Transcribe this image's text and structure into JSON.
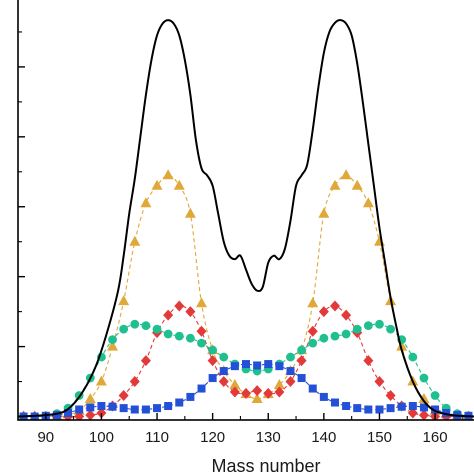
{
  "chart_data": {
    "type": "line",
    "title": "",
    "xlabel": "Mass number",
    "ylabel": "",
    "xlim": [
      85,
      167
    ],
    "ylim": [
      -0.05,
      6.1
    ],
    "x_ticks": [
      90,
      100,
      110,
      120,
      130,
      140,
      150,
      160
    ],
    "x_tick_labels": [
      "90",
      "100",
      "110",
      "120",
      "130",
      "140",
      "150",
      "160"
    ],
    "y_ticks": [
      0,
      1,
      2,
      3,
      4,
      5
    ],
    "grid": false,
    "legend": "none",
    "series": [
      {
        "style": "solid-line",
        "color": "#000000",
        "x": [
          85,
          90,
          93,
          95,
          97,
          99,
          101,
          103,
          104,
          105,
          106,
          107,
          108,
          109,
          110,
          111,
          112,
          113,
          114,
          115,
          116,
          117,
          118,
          119,
          120,
          121,
          122,
          123,
          124,
          125,
          126,
          127,
          128,
          129,
          130,
          131,
          132,
          133,
          134,
          135,
          136,
          137,
          138,
          139,
          140,
          141,
          142,
          143,
          144,
          145,
          146,
          147,
          148,
          149,
          150,
          151,
          152,
          153,
          154,
          156,
          158,
          160,
          163,
          167
        ],
        "y": [
          0.0,
          0.02,
          0.06,
          0.18,
          0.4,
          0.72,
          1.2,
          1.8,
          2.3,
          2.9,
          3.4,
          4.0,
          4.6,
          5.1,
          5.45,
          5.62,
          5.67,
          5.62,
          5.45,
          5.1,
          4.6,
          3.95,
          3.55,
          3.45,
          3.3,
          2.9,
          2.5,
          2.3,
          2.25,
          2.3,
          2.1,
          1.9,
          1.8,
          1.85,
          2.2,
          2.3,
          2.25,
          2.4,
          2.8,
          3.3,
          3.45,
          3.6,
          4.1,
          4.7,
          5.2,
          5.5,
          5.63,
          5.67,
          5.62,
          5.45,
          5.05,
          4.5,
          3.9,
          3.3,
          2.7,
          2.2,
          1.7,
          1.3,
          0.95,
          0.5,
          0.22,
          0.08,
          0.02,
          0.0
        ]
      },
      {
        "style": "dashed-triangle",
        "color": "#e0a838",
        "x": [
          86,
          88,
          90,
          92,
          94,
          96,
          98,
          100,
          102,
          104,
          106,
          108,
          110,
          112,
          114,
          116,
          118,
          120,
          122,
          124,
          126,
          128,
          130,
          132,
          134,
          136,
          138,
          140,
          142,
          144,
          146,
          148,
          150,
          152,
          154,
          156,
          158,
          160,
          162,
          164,
          166
        ],
        "y": [
          0.0,
          0.0,
          0.0,
          0.01,
          0.03,
          0.08,
          0.25,
          0.5,
          1.0,
          1.65,
          2.5,
          3.05,
          3.3,
          3.45,
          3.3,
          2.9,
          1.62,
          0.95,
          0.65,
          0.45,
          0.32,
          0.25,
          0.32,
          0.45,
          0.65,
          0.95,
          1.62,
          2.9,
          3.3,
          3.45,
          3.3,
          3.05,
          2.5,
          1.65,
          1.0,
          0.5,
          0.25,
          0.08,
          0.03,
          0.01,
          0.0
        ]
      },
      {
        "style": "dashed-diamond",
        "color": "#e23a3a",
        "x": [
          86,
          88,
          90,
          92,
          94,
          96,
          98,
          100,
          102,
          104,
          106,
          108,
          110,
          112,
          114,
          116,
          118,
          120,
          122,
          124,
          126,
          128,
          130,
          132,
          134,
          136,
          138,
          140,
          142,
          144,
          146,
          148,
          150,
          152,
          154,
          156,
          158,
          160,
          162,
          164,
          166
        ],
        "y": [
          0.0,
          0.0,
          0.0,
          0.0,
          0.0,
          0.0,
          0.02,
          0.05,
          0.15,
          0.3,
          0.5,
          0.8,
          1.2,
          1.45,
          1.58,
          1.5,
          1.22,
          0.8,
          0.5,
          0.35,
          0.33,
          0.37,
          0.33,
          0.35,
          0.5,
          0.8,
          1.22,
          1.5,
          1.58,
          1.45,
          1.2,
          0.8,
          0.5,
          0.3,
          0.15,
          0.05,
          0.02,
          0.0,
          0.0,
          0.0,
          0.0
        ]
      },
      {
        "style": "dashed-circle",
        "color": "#1fbf8f",
        "x": [
          86,
          88,
          90,
          92,
          94,
          96,
          98,
          100,
          102,
          104,
          106,
          108,
          110,
          112,
          114,
          116,
          118,
          120,
          122,
          124,
          126,
          128,
          130,
          132,
          134,
          136,
          138,
          140,
          142,
          144,
          146,
          148,
          150,
          152,
          154,
          156,
          158,
          160,
          162,
          164,
          166
        ],
        "y": [
          0.0,
          0.0,
          0.01,
          0.04,
          0.12,
          0.3,
          0.55,
          0.85,
          1.1,
          1.25,
          1.32,
          1.3,
          1.25,
          1.18,
          1.15,
          1.12,
          1.05,
          0.95,
          0.85,
          0.75,
          0.68,
          0.65,
          0.68,
          0.75,
          0.85,
          0.95,
          1.05,
          1.12,
          1.15,
          1.18,
          1.25,
          1.3,
          1.32,
          1.25,
          1.1,
          0.85,
          0.55,
          0.3,
          0.12,
          0.04,
          0.01
        ]
      },
      {
        "style": "dashed-square",
        "color": "#2350d6",
        "x": [
          86,
          88,
          90,
          92,
          94,
          96,
          98,
          100,
          102,
          104,
          106,
          108,
          110,
          112,
          114,
          116,
          118,
          120,
          122,
          124,
          126,
          128,
          130,
          132,
          134,
          136,
          138,
          140,
          142,
          144,
          146,
          148,
          150,
          152,
          154,
          156,
          158,
          160,
          162,
          164,
          166
        ],
        "y": [
          0.0,
          0.0,
          0.01,
          0.02,
          0.05,
          0.1,
          0.13,
          0.15,
          0.14,
          0.12,
          0.1,
          0.1,
          0.12,
          0.15,
          0.2,
          0.28,
          0.4,
          0.55,
          0.65,
          0.72,
          0.75,
          0.73,
          0.75,
          0.72,
          0.65,
          0.55,
          0.4,
          0.28,
          0.2,
          0.15,
          0.12,
          0.1,
          0.1,
          0.12,
          0.14,
          0.15,
          0.13,
          0.1,
          0.05,
          0.02,
          0.01
        ]
      }
    ]
  }
}
